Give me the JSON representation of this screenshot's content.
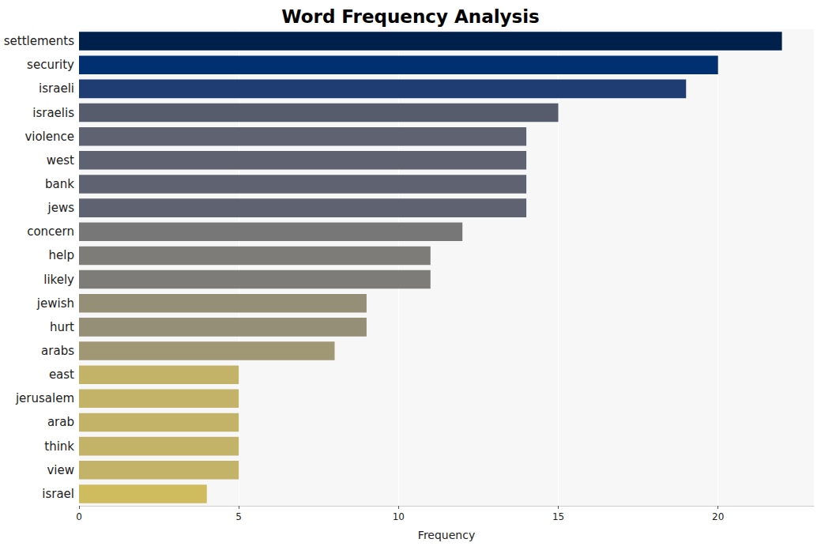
{
  "chart_data": {
    "type": "bar",
    "title": "Word Frequency Analysis",
    "xlabel": "Frequency",
    "orientation": "horizontal",
    "categories": [
      "settlements",
      "security",
      "israeli",
      "israelis",
      "violence",
      "west",
      "bank",
      "jews",
      "concern",
      "help",
      "likely",
      "jewish",
      "hurt",
      "arabs",
      "east",
      "jerusalem",
      "arab",
      "think",
      "view",
      "israel"
    ],
    "values": [
      22,
      20,
      19,
      15,
      14,
      14,
      14,
      14,
      12,
      11,
      11,
      9,
      9,
      8,
      5,
      5,
      5,
      5,
      5,
      4
    ],
    "colors": [
      "#00204c",
      "#00306f",
      "#1f3c73",
      "#575c6d",
      "#5f6270",
      "#5f6270",
      "#5f6270",
      "#5f6270",
      "#777777",
      "#7d7c78",
      "#7d7c78",
      "#958f78",
      "#958f78",
      "#a09775",
      "#c3b369",
      "#c3b369",
      "#c3b369",
      "#c3b369",
      "#c3b369",
      "#cfbc5f"
    ],
    "xlim": [
      0,
      23
    ],
    "xticks": [
      0,
      5,
      10,
      15,
      20
    ],
    "grid": true
  }
}
